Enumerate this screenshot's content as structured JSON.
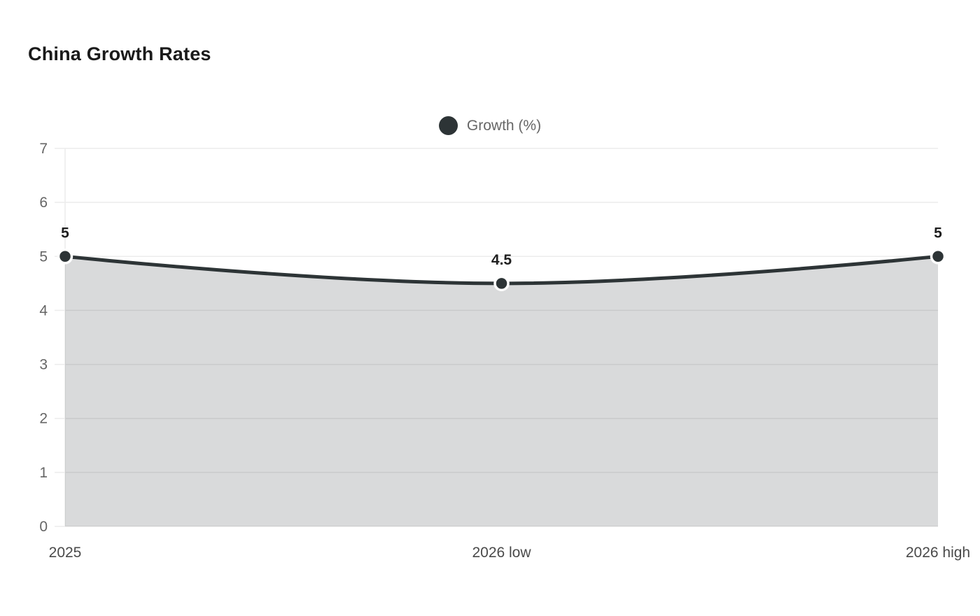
{
  "header": {
    "title": "China Growth Rates"
  },
  "chart_data": {
    "type": "area",
    "title": "China Growth Rates",
    "categories": [
      "2025",
      "2026 low",
      "2026 high"
    ],
    "series": [
      {
        "name": "Growth (%)",
        "values": [
          5,
          4.5,
          5
        ],
        "point_labels": [
          "5",
          "4.5",
          "5"
        ]
      }
    ],
    "xlabel": "",
    "ylabel": "",
    "ylim": [
      0,
      7
    ],
    "yticks": [
      0,
      1,
      2,
      3,
      4,
      5,
      6,
      7
    ],
    "grid": true,
    "legend_position": "top-center",
    "colors": {
      "line": "#2d3436",
      "area_fill": "rgba(45,52,54,0.18)",
      "point_fill": "#2d3436",
      "point_border": "#ffffff",
      "grid_line": "#ececec",
      "y_tick_text": "#666666",
      "x_tick_text": "#4a4a4a",
      "point_label_text": "#1f1f1f",
      "title_text": "#1a1a1a",
      "legend_text": "#666666",
      "background": "#ffffff"
    }
  }
}
